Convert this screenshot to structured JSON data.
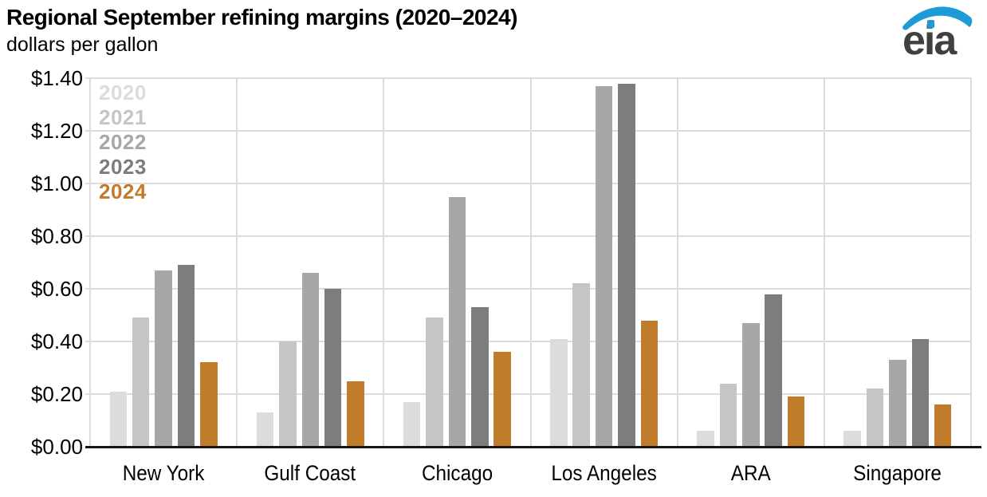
{
  "header": {
    "title": "Regional September refining margins (2020–2024)",
    "subtitle": "dollars per gallon",
    "logo_text": "eia"
  },
  "colors": {
    "logo_blue": "#1d9bd6",
    "logo_gray": "#404040",
    "gridline": "#dcdcdc",
    "axis": "#161616",
    "text": "#000000"
  },
  "chart_data": {
    "type": "bar",
    "title": "Regional September refining margins (2020–2024)",
    "subtitle": "dollars per gallon",
    "ylabel": "dollars per gallon",
    "categories": [
      "New York",
      "Gulf Coast",
      "Chicago",
      "Los Angeles",
      "ARA",
      "Singapore"
    ],
    "series": [
      {
        "name": "2020",
        "color": "#dcdcdc",
        "values": [
          0.21,
          0.13,
          0.17,
          0.41,
          0.06,
          0.06
        ]
      },
      {
        "name": "2021",
        "color": "#c5c5c5",
        "values": [
          0.49,
          0.4,
          0.49,
          0.62,
          0.24,
          0.22
        ]
      },
      {
        "name": "2022",
        "color": "#a7a7a7",
        "values": [
          0.67,
          0.66,
          0.95,
          1.37,
          0.47,
          0.33
        ]
      },
      {
        "name": "2023",
        "color": "#7d7d7d",
        "values": [
          0.69,
          0.6,
          0.53,
          1.38,
          0.58,
          0.41
        ]
      },
      {
        "name": "2024",
        "color": "#c17c2b",
        "values": [
          0.32,
          0.25,
          0.36,
          0.48,
          0.19,
          0.16
        ]
      }
    ],
    "ylim": [
      0,
      1.4
    ],
    "ytick_interval": 0.2,
    "ytick_labels": [
      "$0.00",
      "$0.20",
      "$0.40",
      "$0.60",
      "$0.80",
      "$1.00",
      "$1.20",
      "$1.40"
    ],
    "grid": true,
    "legend_position": "top-left-inside"
  }
}
